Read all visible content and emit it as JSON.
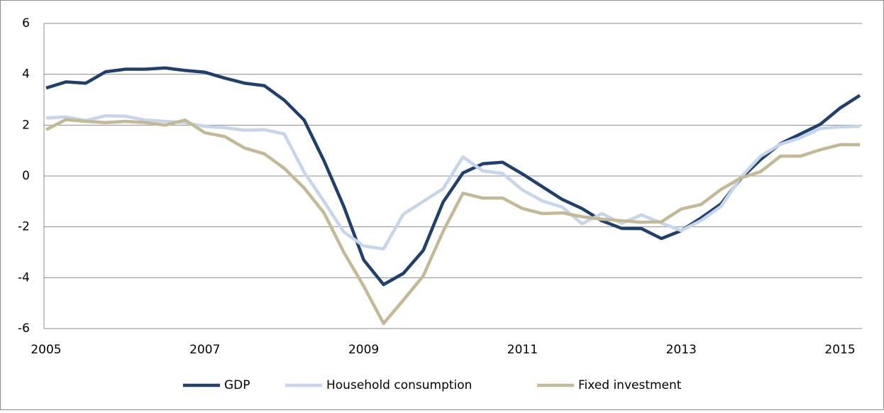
{
  "chart_data": {
    "type": "line",
    "x": [
      2005,
      2005.25,
      2005.5,
      2005.75,
      2006,
      2006.25,
      2006.5,
      2006.75,
      2007,
      2007.25,
      2007.5,
      2007.75,
      2008,
      2008.25,
      2008.5,
      2008.75,
      2009,
      2009.25,
      2009.5,
      2009.75,
      2010,
      2010.25,
      2010.5,
      2010.75,
      2011,
      2011.25,
      2011.5,
      2011.75,
      2012,
      2012.25,
      2012.5,
      2012.75,
      2013,
      2013.25,
      2013.5,
      2013.75,
      2014,
      2014.25,
      2014.5,
      2014.75,
      2015,
      2015.25
    ],
    "series": [
      {
        "name": "GDP",
        "color": "#1f3f6e",
        "values": [
          3.46,
          3.7,
          3.65,
          4.1,
          4.2,
          4.2,
          4.25,
          4.15,
          4.08,
          3.85,
          3.65,
          3.55,
          2.98,
          2.2,
          0.6,
          -1.2,
          -3.3,
          -4.27,
          -3.83,
          -2.93,
          -1.03,
          0.12,
          0.48,
          0.54,
          0.08,
          -0.42,
          -0.92,
          -1.28,
          -1.76,
          -2.06,
          -2.07,
          -2.46,
          -2.15,
          -1.65,
          -1.1,
          -0.1,
          0.65,
          1.27,
          1.65,
          2.03,
          2.67,
          3.17
        ]
      },
      {
        "name": "Household consumption",
        "color": "#c5d6ec",
        "values": [
          2.28,
          2.32,
          2.18,
          2.37,
          2.35,
          2.2,
          2.15,
          2.1,
          1.95,
          1.9,
          1.8,
          1.82,
          1.65,
          0.15,
          -1.0,
          -2.2,
          -2.75,
          -2.87,
          -1.5,
          -1.0,
          -0.5,
          0.75,
          0.2,
          0.1,
          -0.55,
          -0.98,
          -1.22,
          -1.88,
          -1.48,
          -1.86,
          -1.53,
          -1.85,
          -2.15,
          -1.75,
          -1.2,
          -0.05,
          0.78,
          1.25,
          1.5,
          1.87,
          1.93,
          1.95
        ]
      },
      {
        "name": "Fixed investment",
        "color": "#c4b994",
        "values": [
          1.82,
          2.22,
          2.15,
          2.1,
          2.15,
          2.1,
          2.0,
          2.2,
          1.7,
          1.55,
          1.1,
          0.87,
          0.3,
          -0.47,
          -1.45,
          -3.0,
          -4.33,
          -5.8,
          -4.88,
          -3.93,
          -2.18,
          -0.68,
          -0.87,
          -0.87,
          -1.28,
          -1.48,
          -1.45,
          -1.6,
          -1.7,
          -1.76,
          -1.82,
          -1.8,
          -1.3,
          -1.12,
          -0.53,
          -0.08,
          0.17,
          0.78,
          0.78,
          1.03,
          1.23,
          1.23
        ]
      }
    ],
    "xlim": [
      2005,
      2015.25
    ],
    "xticks": [
      2005,
      2007,
      2009,
      2011,
      2013,
      2015
    ],
    "ylim": [
      -6,
      6
    ],
    "yticks": [
      -6,
      -4,
      -2,
      0,
      2,
      4,
      6
    ],
    "grid": true,
    "legend": "bottom"
  }
}
